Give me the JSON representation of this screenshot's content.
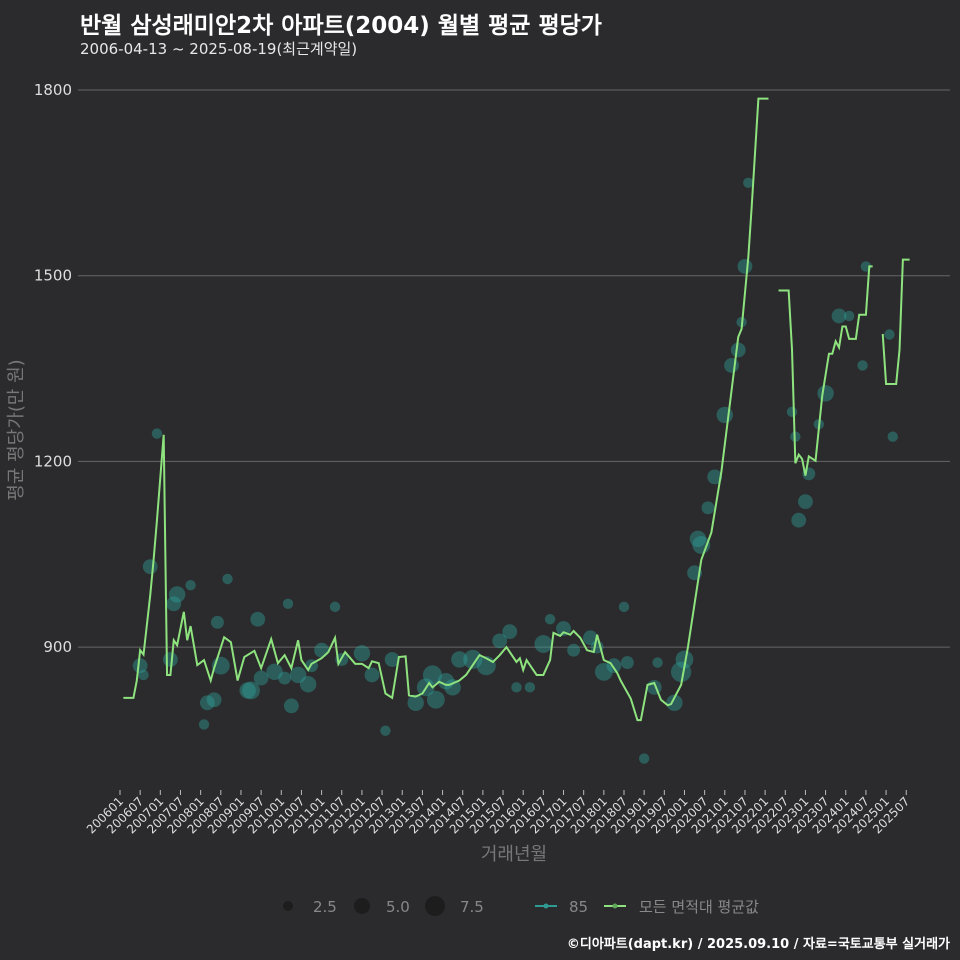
{
  "title": "반월 삼성래미안2차 아파트(2004) 월별 평균 평당가",
  "subtitle": "2006-04-13 ~ 2025-08-19(최근계약일)",
  "footer": "©디아파트(dapt.kr) / 2025.09.10 / 자료=국토교통부 실거래가",
  "colors": {
    "background": "#2b2b2d",
    "line": "#8ee37e",
    "bubble": "#2f9c94",
    "grid": "#666666"
  },
  "chart_data": {
    "type": "line",
    "xlabel": "거래년월",
    "ylabel": "평균 평당가(만 원)",
    "ylim": [
      680,
      1830
    ],
    "yticks": [
      900,
      1200,
      1500,
      1800
    ],
    "xticks": [
      "200601",
      "200607",
      "200701",
      "200707",
      "200801",
      "200807",
      "200901",
      "200907",
      "201001",
      "201007",
      "201101",
      "201107",
      "201201",
      "201207",
      "201301",
      "201307",
      "201401",
      "201407",
      "201501",
      "201507",
      "201601",
      "201607",
      "201701",
      "201707",
      "201801",
      "201807",
      "201901",
      "201907",
      "202001",
      "202007",
      "202101",
      "202107",
      "202201",
      "202207",
      "202301",
      "202307",
      "202401",
      "202407",
      "202501",
      "202507"
    ],
    "legend": {
      "size_title": "",
      "sizes": [
        {
          "label": "2.5",
          "value": 2.5
        },
        {
          "label": "5.0",
          "value": 5.0
        },
        {
          "label": "7.5",
          "value": 7.5
        }
      ],
      "series": [
        {
          "label": "85",
          "color": "#2f9c94"
        },
        {
          "label": "모든 면적대 평균값",
          "color": "#8ee37e"
        }
      ],
      "position": "bottom"
    },
    "series": [
      {
        "name": "모든 면적대 평균값",
        "segments": [
          [
            [
              "2006-02",
              818
            ],
            [
              "2006-05",
              818
            ],
            [
              "2006-06",
              846
            ],
            [
              "2006-07",
              895
            ],
            [
              "2006-08",
              888
            ],
            [
              "2006-10",
              984
            ],
            [
              "2006-11",
              1041
            ],
            [
              "2006-12",
              1105
            ],
            [
              "2007-02",
              1243
            ],
            [
              "2007-03",
              855
            ],
            [
              "2007-04",
              855
            ],
            [
              "2007-05",
              911
            ],
            [
              "2007-06",
              903
            ],
            [
              "2007-08",
              957
            ],
            [
              "2007-09",
              911
            ],
            [
              "2007-10",
              934
            ],
            [
              "2007-12",
              871
            ],
            [
              "2008-02",
              879
            ],
            [
              "2008-04",
              846
            ],
            [
              "2008-05",
              866
            ],
            [
              "2008-08",
              916
            ],
            [
              "2008-10",
              908
            ],
            [
              "2008-12",
              846
            ],
            [
              "2009-02",
              884
            ],
            [
              "2009-05",
              894
            ],
            [
              "2009-07",
              866
            ],
            [
              "2009-10",
              913
            ],
            [
              "2009-12",
              874
            ],
            [
              "2010-02",
              887
            ],
            [
              "2010-04",
              866
            ],
            [
              "2010-06",
              911
            ],
            [
              "2010-07",
              879
            ],
            [
              "2010-09",
              863
            ],
            [
              "2010-10",
              873
            ],
            [
              "2011-01",
              882
            ],
            [
              "2011-03",
              892
            ],
            [
              "2011-05",
              915
            ],
            [
              "2011-06",
              873
            ],
            [
              "2011-08",
              892
            ],
            [
              "2011-11",
              873
            ],
            [
              "2012-01",
              873
            ],
            [
              "2012-03",
              866
            ],
            [
              "2012-04",
              877
            ],
            [
              "2012-06",
              874
            ],
            [
              "2012-08",
              825
            ],
            [
              "2012-10",
              818
            ],
            [
              "2012-12",
              884
            ],
            [
              "2013-02",
              885
            ],
            [
              "2013-03",
              822
            ],
            [
              "2013-05",
              820
            ],
            [
              "2013-07",
              825
            ],
            [
              "2013-09",
              842
            ],
            [
              "2013-10",
              835
            ],
            [
              "2013-12",
              844
            ],
            [
              "2014-02",
              839
            ],
            [
              "2014-03",
              839
            ],
            [
              "2014-06",
              846
            ],
            [
              "2014-08",
              855
            ],
            [
              "2014-12",
              887
            ],
            [
              "2015-02",
              882
            ],
            [
              "2015-04",
              876
            ],
            [
              "2015-06",
              887
            ],
            [
              "2015-08",
              900
            ],
            [
              "2015-11",
              876
            ],
            [
              "2015-12",
              882
            ],
            [
              "2016-01",
              863
            ],
            [
              "2016-02",
              879
            ],
            [
              "2016-05",
              855
            ],
            [
              "2016-07",
              855
            ],
            [
              "2016-09",
              879
            ],
            [
              "2016-10",
              923
            ],
            [
              "2016-12",
              918
            ],
            [
              "2017-01",
              924
            ],
            [
              "2017-03",
              920
            ],
            [
              "2017-04",
              926
            ],
            [
              "2017-06",
              915
            ],
            [
              "2017-08",
              895
            ],
            [
              "2017-10",
              892
            ],
            [
              "2017-11",
              920
            ],
            [
              "2018-01",
              879
            ],
            [
              "2018-03",
              874
            ],
            [
              "2018-05",
              858
            ],
            [
              "2018-06",
              846
            ],
            [
              "2018-09",
              817
            ],
            [
              "2018-11",
              782
            ],
            [
              "2018-12",
              782
            ],
            [
              "2019-02",
              839
            ],
            [
              "2019-04",
              842
            ],
            [
              "2019-06",
              815
            ],
            [
              "2019-08",
              806
            ],
            [
              "2019-09",
              808
            ],
            [
              "2019-12",
              839
            ],
            [
              "2020-02",
              899
            ],
            [
              "2020-06",
              1041
            ],
            [
              "2020-09",
              1085
            ],
            [
              "2020-12",
              1184
            ],
            [
              "2021-05",
              1401
            ],
            [
              "2021-06",
              1414
            ],
            [
              "2021-08",
              1530
            ],
            [
              "2021-09",
              1611
            ],
            [
              "2021-11",
              1786
            ],
            [
              "2022-02",
              1786
            ]
          ],
          [
            [
              "2022-05",
              1476
            ],
            [
              "2022-08",
              1476
            ],
            [
              "2022-09",
              1381
            ],
            [
              "2022-10",
              1197
            ],
            [
              "2022-11",
              1211
            ],
            [
              "2022-12",
              1204
            ],
            [
              "2023-01",
              1177
            ],
            [
              "2023-02",
              1208
            ],
            [
              "2023-04",
              1201
            ],
            [
              "2023-06",
              1306
            ],
            [
              "2023-08",
              1374
            ],
            [
              "2023-09",
              1374
            ],
            [
              "2023-10",
              1394
            ],
            [
              "2023-11",
              1384
            ],
            [
              "2023-12",
              1418
            ],
            [
              "2024-01",
              1418
            ],
            [
              "2024-02",
              1398
            ],
            [
              "2024-04",
              1398
            ],
            [
              "2024-05",
              1437
            ],
            [
              "2024-07",
              1437
            ],
            [
              "2024-08",
              1515
            ],
            [
              "2024-09",
              1515
            ]
          ],
          [
            [
              "2024-12",
              1406
            ],
            [
              "2025-01",
              1325
            ],
            [
              "2025-04",
              1325
            ],
            [
              "2025-05",
              1380
            ],
            [
              "2025-06",
              1526
            ],
            [
              "2025-08",
              1526
            ]
          ]
        ]
      }
    ],
    "bubbles_85": [
      [
        "2006-12",
        1245,
        1
      ],
      [
        "2006-10",
        1030,
        3
      ],
      [
        "2006-07",
        870,
        3
      ],
      [
        "2006-08",
        855,
        1
      ],
      [
        "2007-05",
        970,
        3
      ],
      [
        "2007-06",
        985,
        4
      ],
      [
        "2007-04",
        880,
        3
      ],
      [
        "2007-10",
        1000,
        1
      ],
      [
        "2008-03",
        810,
        3
      ],
      [
        "2008-06",
        940,
        2
      ],
      [
        "2008-07",
        870,
        5
      ],
      [
        "2008-05",
        815,
        3
      ],
      [
        "2008-09",
        1010,
        1
      ],
      [
        "2008-02",
        775,
        1
      ],
      [
        "2009-03",
        830,
        4
      ],
      [
        "2009-04",
        830,
        5
      ],
      [
        "2009-06",
        945,
        3
      ],
      [
        "2009-07",
        850,
        3
      ],
      [
        "2009-11",
        860,
        4
      ],
      [
        "2010-02",
        850,
        2
      ],
      [
        "2010-03",
        970,
        1
      ],
      [
        "2010-04",
        805,
        3
      ],
      [
        "2010-06",
        855,
        4
      ],
      [
        "2010-09",
        840,
        4
      ],
      [
        "2010-10",
        870,
        2
      ],
      [
        "2011-01",
        895,
        3
      ],
      [
        "2011-05",
        965,
        1
      ],
      [
        "2011-07",
        880,
        2
      ],
      [
        "2012-01",
        890,
        4
      ],
      [
        "2012-04",
        855,
        3
      ],
      [
        "2012-08",
        765,
        1
      ],
      [
        "2012-10",
        880,
        3
      ],
      [
        "2013-05",
        810,
        4
      ],
      [
        "2013-08",
        835,
        5
      ],
      [
        "2013-10",
        855,
        6
      ],
      [
        "2013-11",
        815,
        5
      ],
      [
        "2014-02",
        845,
        4
      ],
      [
        "2014-04",
        835,
        4
      ],
      [
        "2014-06",
        880,
        4
      ],
      [
        "2014-10",
        880,
        6
      ],
      [
        "2015-02",
        870,
        6
      ],
      [
        "2015-06",
        910,
        3
      ],
      [
        "2015-09",
        925,
        3
      ],
      [
        "2015-11",
        835,
        1
      ],
      [
        "2016-03",
        835,
        1
      ],
      [
        "2016-07",
        905,
        5
      ],
      [
        "2016-09",
        945,
        1
      ],
      [
        "2017-01",
        930,
        3
      ],
      [
        "2017-04",
        895,
        2
      ],
      [
        "2017-09",
        915,
        3
      ],
      [
        "2017-11",
        900,
        2
      ],
      [
        "2018-01",
        860,
        5
      ],
      [
        "2018-04",
        870,
        3
      ],
      [
        "2018-07",
        965,
        1
      ],
      [
        "2018-08",
        875,
        2
      ],
      [
        "2019-01",
        720,
        1
      ],
      [
        "2019-04",
        835,
        3
      ],
      [
        "2019-05",
        875,
        1
      ],
      [
        "2019-10",
        810,
        4
      ],
      [
        "2019-12",
        860,
        7
      ],
      [
        "2020-01",
        880,
        5
      ],
      [
        "2020-04",
        1020,
        3
      ],
      [
        "2020-05",
        1075,
        4
      ],
      [
        "2020-06",
        1065,
        5
      ],
      [
        "2020-08",
        1125,
        2
      ],
      [
        "2020-10",
        1175,
        3
      ],
      [
        "2021-01",
        1275,
        4
      ],
      [
        "2021-03",
        1355,
        3
      ],
      [
        "2021-05",
        1380,
        3
      ],
      [
        "2021-06",
        1425,
        1
      ],
      [
        "2021-07",
        1515,
        3
      ],
      [
        "2021-08",
        1650,
        1
      ],
      [
        "2022-09",
        1280,
        1
      ],
      [
        "2022-10",
        1240,
        1
      ],
      [
        "2022-11",
        1105,
        3
      ],
      [
        "2023-01",
        1135,
        3
      ],
      [
        "2023-02",
        1180,
        2
      ],
      [
        "2023-05",
        1260,
        1
      ],
      [
        "2023-07",
        1310,
        4
      ],
      [
        "2023-11",
        1435,
        3
      ],
      [
        "2024-02",
        1435,
        1
      ],
      [
        "2024-07",
        1515,
        1
      ],
      [
        "2024-06",
        1355,
        1
      ],
      [
        "2025-02",
        1405,
        1
      ],
      [
        "2025-03",
        1240,
        1
      ]
    ]
  }
}
